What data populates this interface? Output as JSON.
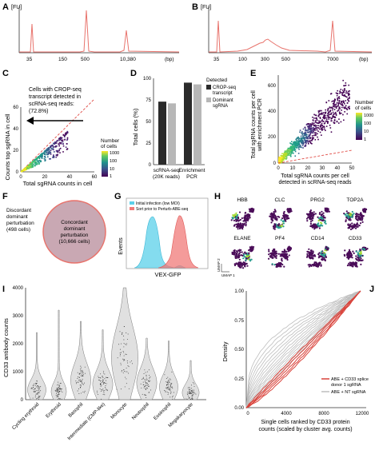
{
  "panels": {
    "A": {
      "label": "A",
      "ylabel": "[FU]",
      "xlabel": "(bp)",
      "ticks": [
        "35",
        "150",
        "500",
        "10,380"
      ],
      "color": "#e8736c",
      "peaks": [
        {
          "bp": "35",
          "height": 0.55
        },
        {
          "bp": "500",
          "height": 0.93
        },
        {
          "bp": "10,380",
          "height": 0.62
        }
      ]
    },
    "B": {
      "label": "B",
      "ylabel": "[FU]",
      "xlabel": "(bp)",
      "ticks": [
        "35",
        "100",
        "300",
        "500",
        "7000"
      ],
      "color": "#e8736c",
      "peaks": [
        {
          "bp": "35",
          "height": 0.62
        },
        {
          "bp": "300",
          "height": 0.22
        },
        {
          "bp": "7000",
          "height": 0.62
        }
      ]
    },
    "C": {
      "label": "C",
      "ylabel": "Counts top sgRNA in cell",
      "xlabel": "Total sgRNA counts in cell",
      "xticks": [
        "0",
        "20",
        "40",
        "60"
      ],
      "yticks": [
        "0",
        "20",
        "40",
        "60"
      ],
      "annotation": [
        "Cells with CROP-seq",
        "transcript detected in",
        "scRNA-seq reads:",
        "(72.8%)"
      ],
      "legend_title": [
        "Number",
        "of cells"
      ],
      "legend_ticks": [
        "1000",
        "100",
        "10",
        "1"
      ]
    },
    "D": {
      "label": "D",
      "ylabel": "Total cells (%)",
      "yticks": [
        "0",
        "25",
        "50",
        "75",
        "100"
      ],
      "legend_title": "Detected",
      "legend_items": [
        {
          "name": "CROP-seq transcript",
          "lines": [
            "CROP-seq",
            "transcript"
          ],
          "color": "#2b2b2b"
        },
        {
          "name": "Dominant sgRNA",
          "lines": [
            "Dominant",
            "sgRNA"
          ],
          "color": "#b7b7b7"
        }
      ]
    },
    "E": {
      "label": "E",
      "ylabel": [
        "Total sgRNA counts per cell",
        "with enrichment PCR"
      ],
      "xlabel": [
        "Total sgRNA counts per cell",
        "detected in scRNA-seq reads"
      ],
      "xticks": [
        "0",
        "10",
        "20",
        "30",
        "40",
        "50"
      ],
      "yticks": [
        "0",
        "200",
        "400",
        "600"
      ],
      "legend_title": [
        "Number",
        "of cells"
      ],
      "legend_ticks": [
        "1000",
        "100",
        "10",
        "1"
      ]
    },
    "F": {
      "label": "F",
      "discordant": [
        "Discordant",
        "dominant",
        "perturbation",
        "(498 cells)"
      ],
      "concordant": [
        "Concordant",
        "dominant",
        "perturbation",
        "(10,666 cells)"
      ]
    },
    "G": {
      "label": "G",
      "ylabel": "Events",
      "xlabel": "VEX-GFP",
      "legend": [
        {
          "name": "Initial infection (low MOI)",
          "color": "#5bd0ea"
        },
        {
          "name": "Sort prior to Perturb-ABE-seq",
          "color": "#f07a78"
        }
      ]
    },
    "H": {
      "label": "H",
      "genes": [
        "HBB",
        "CLC",
        "PRG2",
        "TOP2A",
        "ELANE",
        "PF4",
        "CD14",
        "CD33"
      ],
      "axis1": "UMAP 1",
      "axis2": "UMAP 2"
    },
    "I": {
      "label": "I",
      "ylabel": "CD33 antibody counts",
      "yticks": [
        "0",
        "1000",
        "2000",
        "3000",
        "4000"
      ],
      "categories": [
        "Cycling erythroid",
        "Erythroid",
        "Basophil",
        "Intermediate (CMP-like)",
        "Monocyte",
        "Neutrophil",
        "Eosinophil",
        "Megakaryocyte"
      ]
    },
    "J": {
      "label": "J",
      "ylabel": "Density",
      "xlabel": [
        "Single cells ranked by CD33 protein",
        "counts (scaled by cluster avg. counts)"
      ],
      "xticks": [
        "0",
        "4000",
        "8000",
        "12000"
      ],
      "yticks": [
        "0.00",
        "0.25",
        "0.50",
        "0.75",
        "1.00"
      ],
      "legend": [
        {
          "name": "ABE + CD33 splice donor 1 sgRNA",
          "lines": [
            "ABE + CD33 splice",
            "donor 1 sgRNA"
          ],
          "color": "#d9423a"
        },
        {
          "name": "ABE + NT sgRNA",
          "lines": [
            "ABE + NT sgRNA"
          ],
          "color": "#bdbdbd"
        }
      ]
    }
  },
  "chart_data": [
    {
      "type": "bar",
      "panel": "D",
      "categories": [
        "scRNA-seq (20K reads)",
        "Enrichment PCR"
      ],
      "series": [
        {
          "name": "CROP-seq transcript",
          "values": [
            73,
            95
          ]
        },
        {
          "name": "Dominant sgRNA",
          "values": [
            71,
            93
          ]
        }
      ],
      "ylabel": "Total cells (%)",
      "ylim": [
        0,
        100
      ]
    },
    {
      "type": "pie",
      "panel": "F",
      "categories": [
        "Concordant dominant perturbation",
        "Discordant dominant perturbation"
      ],
      "values": [
        10666,
        498
      ]
    },
    {
      "type": "scatter",
      "panel": "C",
      "xlabel": "Total sgRNA counts in cell",
      "ylabel": "Counts top sgRNA in cell",
      "xlim": [
        0,
        60
      ],
      "ylim": [
        0,
        60
      ]
    },
    {
      "type": "scatter",
      "panel": "E",
      "xlim": [
        0,
        50
      ],
      "ylim": [
        0,
        700
      ]
    },
    {
      "type": "line",
      "panel": "J",
      "xlim": [
        0,
        12000
      ],
      "ylim": [
        0,
        1
      ]
    }
  ]
}
